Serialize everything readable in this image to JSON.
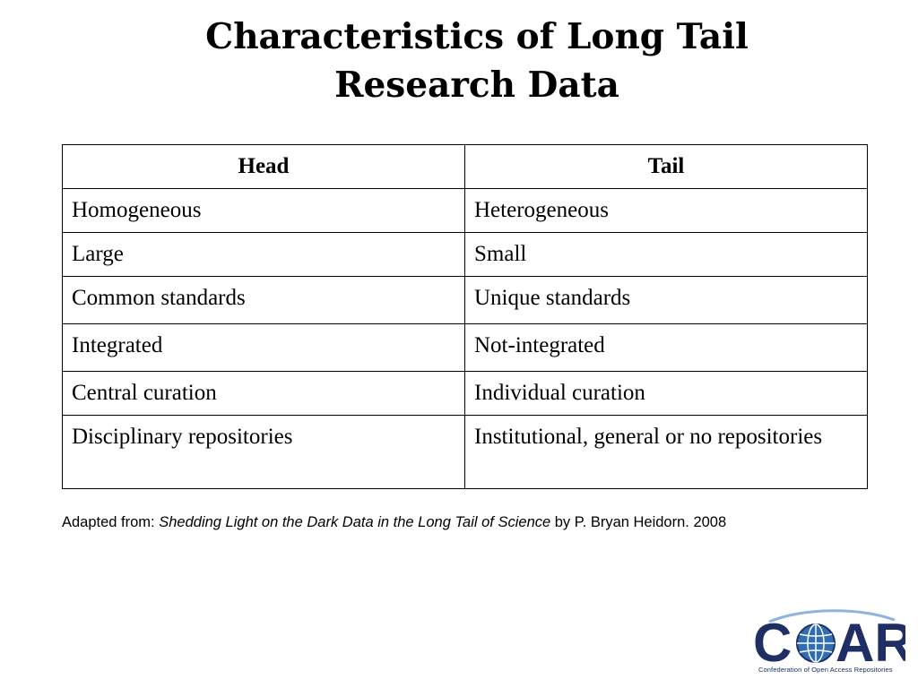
{
  "slide": {
    "title_line1": "Characteristics of Long Tail",
    "title_line2": "Research Data"
  },
  "table": {
    "headers": [
      "Head",
      "Tail"
    ],
    "rows": [
      [
        "Homogeneous",
        "Heterogeneous"
      ],
      [
        "Large",
        "Small"
      ],
      [
        "Common standards",
        "Unique standards"
      ],
      [
        "Integrated",
        "Not-integrated"
      ],
      [
        "Central curation",
        "Individual curation"
      ],
      [
        "Disciplinary repositories",
        "Institutional, general or no repositories"
      ]
    ]
  },
  "citation": {
    "prefix": "Adapted from: ",
    "work_title": "Shedding Light on the Dark Data in the Long Tail of Science",
    "suffix": " by P. Bryan Heidorn. 2008"
  },
  "logo": {
    "wordmark_c": "C",
    "wordmark_ar": "AR",
    "tagline": "Confederation of Open Access Repositories",
    "globe_icon": "globe-icon",
    "colors": {
      "navy": "#1f2f66",
      "blue": "#2f6db5",
      "light_blue": "#8fb3dd"
    }
  }
}
